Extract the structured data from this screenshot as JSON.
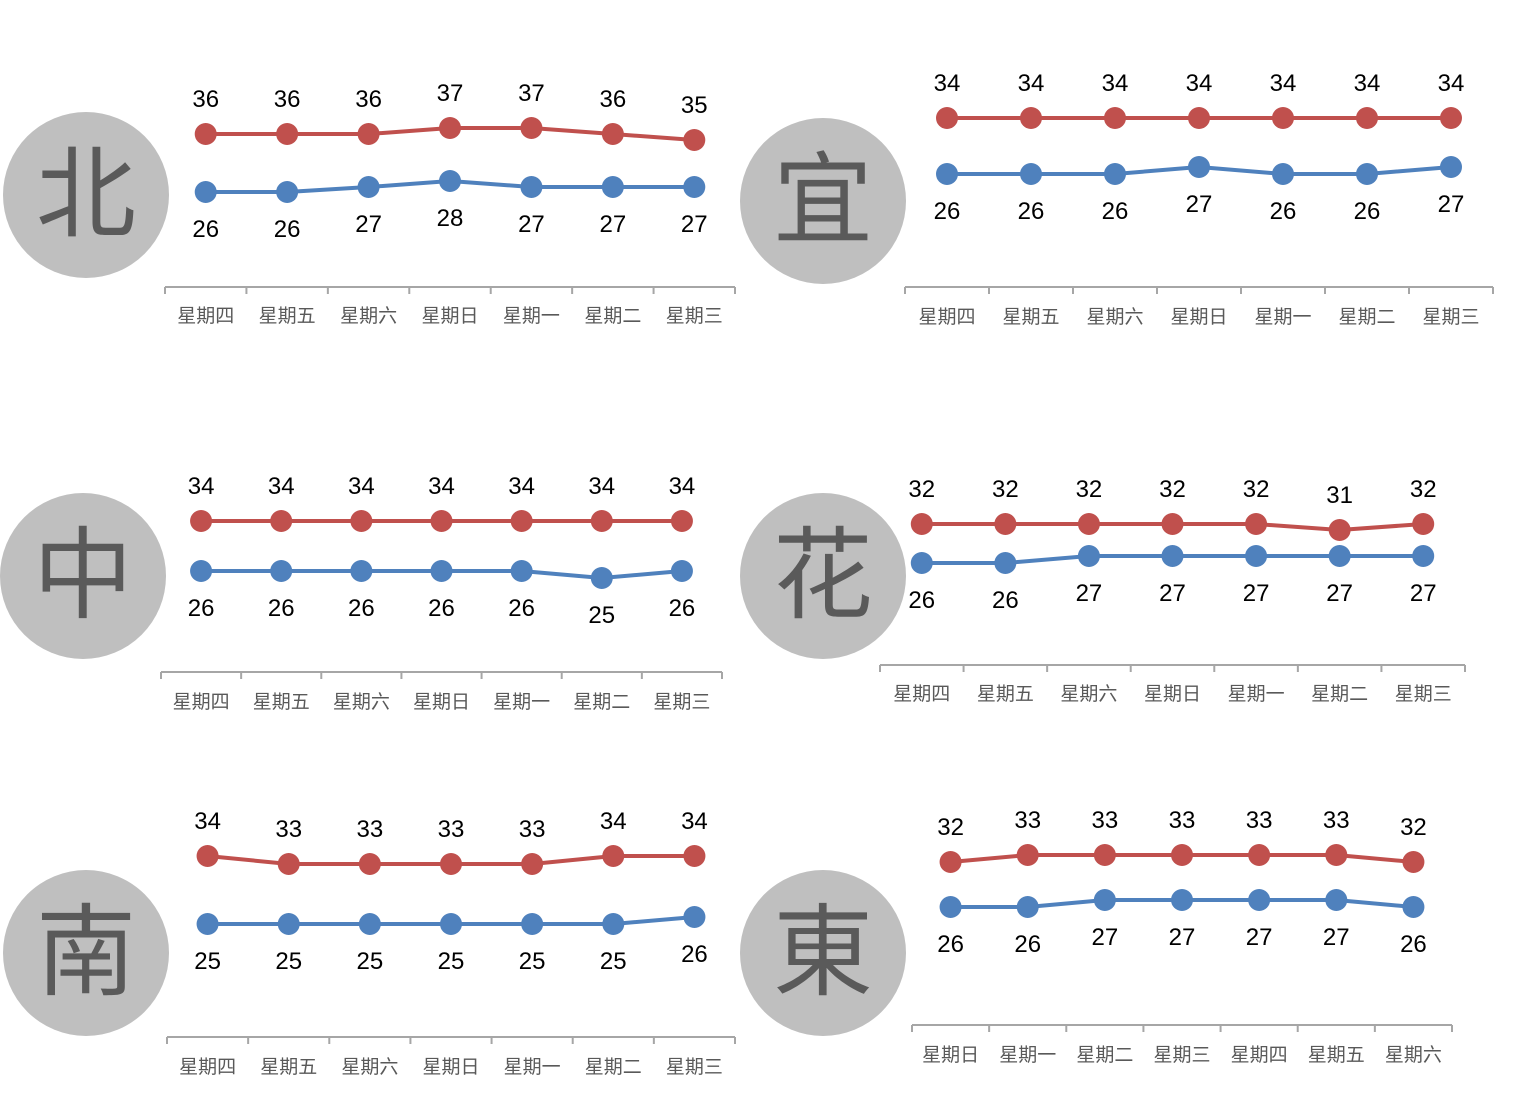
{
  "colors": {
    "high": "#c0504d",
    "low": "#4f81bd",
    "axis": "#a6a6a6",
    "badge": "#bfbfbf"
  },
  "charts": [
    {
      "city": "北",
      "chart_data": {
        "type": "line",
        "categories": [
          "星期四",
          "星期五",
          "星期六",
          "星期日",
          "星期一",
          "星期二",
          "星期三"
        ],
        "series": [
          {
            "values": [
              36,
              36,
              36,
              37,
              37,
              36,
              35
            ]
          },
          {
            "values": [
              26,
              26,
              27,
              28,
              27,
              27,
              27
            ]
          }
        ]
      }
    },
    {
      "city": "宜",
      "chart_data": {
        "type": "line",
        "categories": [
          "星期四",
          "星期五",
          "星期六",
          "星期日",
          "星期一",
          "星期二",
          "星期三"
        ],
        "series": [
          {
            "values": [
              34,
              34,
              34,
              34,
              34,
              34,
              34
            ]
          },
          {
            "values": [
              26,
              26,
              26,
              27,
              26,
              26,
              27
            ]
          }
        ]
      }
    },
    {
      "city": "中",
      "chart_data": {
        "type": "line",
        "categories": [
          "星期四",
          "星期五",
          "星期六",
          "星期日",
          "星期一",
          "星期二",
          "星期三"
        ],
        "series": [
          {
            "values": [
              34,
              34,
              34,
              34,
              34,
              34,
              34
            ]
          },
          {
            "values": [
              26,
              26,
              26,
              26,
              26,
              25,
              26
            ]
          }
        ]
      }
    },
    {
      "city": "花",
      "chart_data": {
        "type": "line",
        "categories": [
          "星期四",
          "星期五",
          "星期六",
          "星期日",
          "星期一",
          "星期二",
          "星期三"
        ],
        "series": [
          {
            "values": [
              32,
              32,
              32,
              32,
              32,
              31,
              32
            ]
          },
          {
            "values": [
              26,
              26,
              27,
              27,
              27,
              27,
              27
            ]
          }
        ]
      }
    },
    {
      "city": "南",
      "chart_data": {
        "type": "line",
        "categories": [
          "星期四",
          "星期五",
          "星期六",
          "星期日",
          "星期一",
          "星期二",
          "星期三"
        ],
        "series": [
          {
            "values": [
              34,
              33,
              33,
              33,
              33,
              34,
              34
            ]
          },
          {
            "values": [
              25,
              25,
              25,
              25,
              25,
              25,
              26
            ]
          }
        ]
      }
    },
    {
      "city": "東",
      "chart_data": {
        "type": "line",
        "categories": [
          "星期日",
          "星期一",
          "星期二",
          "星期三",
          "星期四",
          "星期五",
          "星期六"
        ],
        "series": [
          {
            "values": [
              32,
              33,
              33,
              33,
              33,
              33,
              32
            ]
          },
          {
            "values": [
              26,
              26,
              27,
              27,
              27,
              27,
              26
            ]
          }
        ]
      }
    }
  ]
}
